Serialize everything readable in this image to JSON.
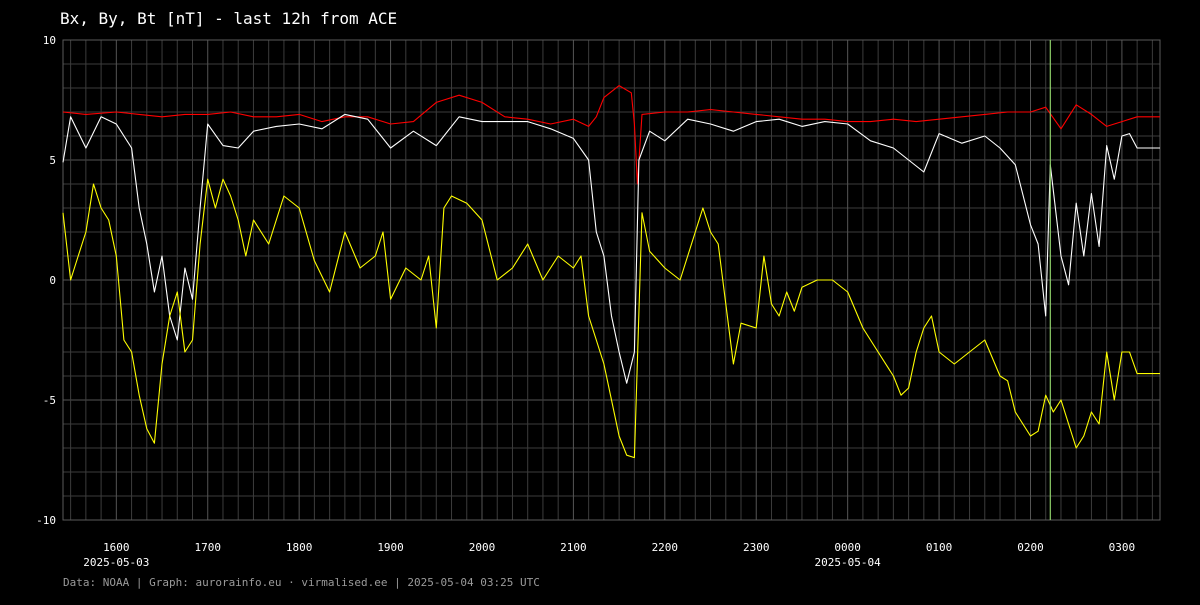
{
  "chart_data": {
    "type": "line",
    "title": "Bx, By, Bt [nT] - last 12h from ACE",
    "xlabel": "",
    "ylabel": "",
    "ylim": [
      -10,
      10
    ],
    "yticks": [
      "10",
      "5",
      "0",
      "-5",
      "-10"
    ],
    "ytick_values": [
      10,
      5,
      0,
      -5,
      -10
    ],
    "xlim": [
      "2025-05-03 15:25",
      "2025-05-04 03:25"
    ],
    "xticks": [
      {
        "t": "2025-05-03 16:00",
        "label": "1600",
        "date": "2025-05-03"
      },
      {
        "t": "2025-05-03 17:00",
        "label": "1700"
      },
      {
        "t": "2025-05-03 18:00",
        "label": "1800"
      },
      {
        "t": "2025-05-03 19:00",
        "label": "1900"
      },
      {
        "t": "2025-05-03 20:00",
        "label": "2000"
      },
      {
        "t": "2025-05-03 21:00",
        "label": "2100"
      },
      {
        "t": "2025-05-03 22:00",
        "label": "2200"
      },
      {
        "t": "2025-05-03 23:00",
        "label": "2300"
      },
      {
        "t": "2025-05-04 00:00",
        "label": "0000",
        "date": "2025-05-04"
      },
      {
        "t": "2025-05-04 01:00",
        "label": "0100"
      },
      {
        "t": "2025-05-04 02:00",
        "label": "0200"
      },
      {
        "t": "2025-05-04 03:00",
        "label": "0300"
      }
    ],
    "grid": true,
    "marker_time": "2025-05-04 02:13",
    "colors": {
      "background": "#000000",
      "grid": "#3c3c3c",
      "text": "#ffffff",
      "marker": "#8fd16a"
    },
    "series": [
      {
        "color": "#ff0000",
        "points": [
          [
            "2025-05-03 15:25",
            7.0
          ],
          [
            "2025-05-03 15:40",
            6.9
          ],
          [
            "2025-05-03 16:00",
            7.0
          ],
          [
            "2025-05-03 16:15",
            6.9
          ],
          [
            "2025-05-03 16:30",
            6.8
          ],
          [
            "2025-05-03 16:45",
            6.9
          ],
          [
            "2025-05-03 17:00",
            6.9
          ],
          [
            "2025-05-03 17:15",
            7.0
          ],
          [
            "2025-05-03 17:30",
            6.8
          ],
          [
            "2025-05-03 17:45",
            6.8
          ],
          [
            "2025-05-03 18:00",
            6.9
          ],
          [
            "2025-05-03 18:15",
            6.6
          ],
          [
            "2025-05-03 18:30",
            6.8
          ],
          [
            "2025-05-03 18:45",
            6.8
          ],
          [
            "2025-05-03 19:00",
            6.5
          ],
          [
            "2025-05-03 19:15",
            6.6
          ],
          [
            "2025-05-03 19:30",
            7.4
          ],
          [
            "2025-05-03 19:45",
            7.7
          ],
          [
            "2025-05-03 20:00",
            7.4
          ],
          [
            "2025-05-03 20:15",
            6.8
          ],
          [
            "2025-05-03 20:30",
            6.7
          ],
          [
            "2025-05-03 20:45",
            6.5
          ],
          [
            "2025-05-03 21:00",
            6.7
          ],
          [
            "2025-05-03 21:10",
            6.4
          ],
          [
            "2025-05-03 21:15",
            6.8
          ],
          [
            "2025-05-03 21:20",
            7.6
          ],
          [
            "2025-05-03 21:30",
            8.1
          ],
          [
            "2025-05-03 21:38",
            7.8
          ],
          [
            "2025-05-03 21:40",
            6.5
          ],
          [
            "2025-05-03 21:42",
            4.0
          ],
          [
            "2025-05-03 21:45",
            6.9
          ],
          [
            "2025-05-03 22:00",
            7.0
          ],
          [
            "2025-05-03 22:15",
            7.0
          ],
          [
            "2025-05-03 22:30",
            7.1
          ],
          [
            "2025-05-03 22:45",
            7.0
          ],
          [
            "2025-05-03 23:00",
            6.9
          ],
          [
            "2025-05-03 23:15",
            6.8
          ],
          [
            "2025-05-03 23:30",
            6.7
          ],
          [
            "2025-05-03 23:45",
            6.7
          ],
          [
            "2025-05-04 00:00",
            6.6
          ],
          [
            "2025-05-04 00:15",
            6.6
          ],
          [
            "2025-05-04 00:30",
            6.7
          ],
          [
            "2025-05-04 00:45",
            6.6
          ],
          [
            "2025-05-04 01:00",
            6.7
          ],
          [
            "2025-05-04 01:15",
            6.8
          ],
          [
            "2025-05-04 01:30",
            6.9
          ],
          [
            "2025-05-04 01:45",
            7.0
          ],
          [
            "2025-05-04 02:00",
            7.0
          ],
          [
            "2025-05-04 02:10",
            7.2
          ],
          [
            "2025-05-04 02:20",
            6.3
          ],
          [
            "2025-05-04 02:30",
            7.3
          ],
          [
            "2025-05-04 02:40",
            6.9
          ],
          [
            "2025-05-04 02:50",
            6.4
          ],
          [
            "2025-05-04 03:00",
            6.6
          ],
          [
            "2025-05-04 03:10",
            6.8
          ],
          [
            "2025-05-04 03:25",
            6.8
          ]
        ]
      },
      {
        "color": "#ffffff",
        "points": [
          [
            "2025-05-03 15:25",
            4.9
          ],
          [
            "2025-05-03 15:30",
            6.8
          ],
          [
            "2025-05-03 15:40",
            5.5
          ],
          [
            "2025-05-03 15:50",
            6.8
          ],
          [
            "2025-05-03 16:00",
            6.5
          ],
          [
            "2025-05-03 16:10",
            5.5
          ],
          [
            "2025-05-03 16:15",
            3.0
          ],
          [
            "2025-05-03 16:20",
            1.5
          ],
          [
            "2025-05-03 16:25",
            -0.5
          ],
          [
            "2025-05-03 16:30",
            1.0
          ],
          [
            "2025-05-03 16:35",
            -1.5
          ],
          [
            "2025-05-03 16:40",
            -2.5
          ],
          [
            "2025-05-03 16:45",
            0.5
          ],
          [
            "2025-05-03 16:50",
            -0.8
          ],
          [
            "2025-05-03 16:55",
            3.0
          ],
          [
            "2025-05-03 17:00",
            6.5
          ],
          [
            "2025-05-03 17:10",
            5.6
          ],
          [
            "2025-05-03 17:20",
            5.5
          ],
          [
            "2025-05-03 17:30",
            6.2
          ],
          [
            "2025-05-03 17:45",
            6.4
          ],
          [
            "2025-05-03 18:00",
            6.5
          ],
          [
            "2025-05-03 18:15",
            6.3
          ],
          [
            "2025-05-03 18:30",
            6.9
          ],
          [
            "2025-05-03 18:45",
            6.7
          ],
          [
            "2025-05-03 19:00",
            5.5
          ],
          [
            "2025-05-03 19:15",
            6.2
          ],
          [
            "2025-05-03 19:30",
            5.6
          ],
          [
            "2025-05-03 19:45",
            6.8
          ],
          [
            "2025-05-03 20:00",
            6.6
          ],
          [
            "2025-05-03 20:15",
            6.6
          ],
          [
            "2025-05-03 20:30",
            6.6
          ],
          [
            "2025-05-03 20:45",
            6.3
          ],
          [
            "2025-05-03 21:00",
            5.9
          ],
          [
            "2025-05-03 21:10",
            5.0
          ],
          [
            "2025-05-03 21:15",
            2.0
          ],
          [
            "2025-05-03 21:20",
            1.0
          ],
          [
            "2025-05-03 21:25",
            -1.5
          ],
          [
            "2025-05-03 21:30",
            -3.0
          ],
          [
            "2025-05-03 21:35",
            -4.3
          ],
          [
            "2025-05-03 21:40",
            -3.0
          ],
          [
            "2025-05-03 21:43",
            5.0
          ],
          [
            "2025-05-03 21:50",
            6.2
          ],
          [
            "2025-05-03 22:00",
            5.8
          ],
          [
            "2025-05-03 22:15",
            6.7
          ],
          [
            "2025-05-03 22:30",
            6.5
          ],
          [
            "2025-05-03 22:45",
            6.2
          ],
          [
            "2025-05-03 23:00",
            6.6
          ],
          [
            "2025-05-03 23:15",
            6.7
          ],
          [
            "2025-05-03 23:30",
            6.4
          ],
          [
            "2025-05-03 23:45",
            6.6
          ],
          [
            "2025-05-04 00:00",
            6.5
          ],
          [
            "2025-05-04 00:15",
            5.8
          ],
          [
            "2025-05-04 00:30",
            5.5
          ],
          [
            "2025-05-04 00:40",
            5.0
          ],
          [
            "2025-05-04 00:50",
            4.5
          ],
          [
            "2025-05-04 01:00",
            6.1
          ],
          [
            "2025-05-04 01:15",
            5.7
          ],
          [
            "2025-05-04 01:30",
            6.0
          ],
          [
            "2025-05-04 01:40",
            5.5
          ],
          [
            "2025-05-04 01:50",
            4.8
          ],
          [
            "2025-05-04 02:00",
            2.3
          ],
          [
            "2025-05-04 02:05",
            1.5
          ],
          [
            "2025-05-04 02:10",
            -1.5
          ],
          [
            "2025-05-04 02:13",
            4.8
          ],
          [
            "2025-05-04 02:20",
            1.0
          ],
          [
            "2025-05-04 02:25",
            -0.2
          ],
          [
            "2025-05-04 02:30",
            3.2
          ],
          [
            "2025-05-04 02:35",
            1.0
          ],
          [
            "2025-05-04 02:40",
            3.6
          ],
          [
            "2025-05-04 02:45",
            1.4
          ],
          [
            "2025-05-04 02:50",
            5.6
          ],
          [
            "2025-05-04 02:55",
            4.2
          ],
          [
            "2025-05-04 03:00",
            6.0
          ],
          [
            "2025-05-04 03:05",
            6.1
          ],
          [
            "2025-05-04 03:10",
            5.5
          ],
          [
            "2025-05-04 03:25",
            5.5
          ]
        ]
      },
      {
        "color": "#ffff00",
        "points": [
          [
            "2025-05-03 15:25",
            2.8
          ],
          [
            "2025-05-03 15:30",
            0.0
          ],
          [
            "2025-05-03 15:35",
            1.0
          ],
          [
            "2025-05-03 15:40",
            2.0
          ],
          [
            "2025-05-03 15:45",
            4.0
          ],
          [
            "2025-05-03 15:50",
            3.0
          ],
          [
            "2025-05-03 15:55",
            2.5
          ],
          [
            "2025-05-03 16:00",
            1.0
          ],
          [
            "2025-05-03 16:05",
            -2.5
          ],
          [
            "2025-05-03 16:10",
            -3.0
          ],
          [
            "2025-05-03 16:15",
            -4.8
          ],
          [
            "2025-05-03 16:20",
            -6.2
          ],
          [
            "2025-05-03 16:25",
            -6.8
          ],
          [
            "2025-05-03 16:30",
            -3.5
          ],
          [
            "2025-05-03 16:35",
            -1.5
          ],
          [
            "2025-05-03 16:40",
            -0.5
          ],
          [
            "2025-05-03 16:45",
            -3.0
          ],
          [
            "2025-05-03 16:50",
            -2.5
          ],
          [
            "2025-05-03 16:55",
            1.5
          ],
          [
            "2025-05-03 17:00",
            4.2
          ],
          [
            "2025-05-03 17:05",
            3.0
          ],
          [
            "2025-05-03 17:10",
            4.2
          ],
          [
            "2025-05-03 17:15",
            3.5
          ],
          [
            "2025-05-03 17:20",
            2.5
          ],
          [
            "2025-05-03 17:25",
            1.0
          ],
          [
            "2025-05-03 17:30",
            2.5
          ],
          [
            "2025-05-03 17:40",
            1.5
          ],
          [
            "2025-05-03 17:50",
            3.5
          ],
          [
            "2025-05-03 18:00",
            3.0
          ],
          [
            "2025-05-03 18:10",
            0.8
          ],
          [
            "2025-05-03 18:20",
            -0.5
          ],
          [
            "2025-05-03 18:30",
            2.0
          ],
          [
            "2025-05-03 18:40",
            0.5
          ],
          [
            "2025-05-03 18:50",
            1.0
          ],
          [
            "2025-05-03 18:55",
            2.0
          ],
          [
            "2025-05-03 19:00",
            -0.8
          ],
          [
            "2025-05-03 19:10",
            0.5
          ],
          [
            "2025-05-03 19:20",
            0.0
          ],
          [
            "2025-05-03 19:25",
            1.0
          ],
          [
            "2025-05-03 19:30",
            -2.0
          ],
          [
            "2025-05-03 19:35",
            3.0
          ],
          [
            "2025-05-03 19:40",
            3.5
          ],
          [
            "2025-05-03 19:50",
            3.2
          ],
          [
            "2025-05-03 20:00",
            2.5
          ],
          [
            "2025-05-03 20:10",
            0.0
          ],
          [
            "2025-05-03 20:20",
            0.5
          ],
          [
            "2025-05-03 20:30",
            1.5
          ],
          [
            "2025-05-03 20:40",
            0.0
          ],
          [
            "2025-05-03 20:50",
            1.0
          ],
          [
            "2025-05-03 21:00",
            0.5
          ],
          [
            "2025-05-03 21:05",
            1.0
          ],
          [
            "2025-05-03 21:10",
            -1.5
          ],
          [
            "2025-05-03 21:15",
            -2.5
          ],
          [
            "2025-05-03 21:20",
            -3.5
          ],
          [
            "2025-05-03 21:25",
            -5.0
          ],
          [
            "2025-05-03 21:30",
            -6.5
          ],
          [
            "2025-05-03 21:35",
            -7.3
          ],
          [
            "2025-05-03 21:40",
            -7.4
          ],
          [
            "2025-05-03 21:45",
            2.8
          ],
          [
            "2025-05-03 21:50",
            1.2
          ],
          [
            "2025-05-03 22:00",
            0.5
          ],
          [
            "2025-05-03 22:10",
            0.0
          ],
          [
            "2025-05-03 22:15",
            1.0
          ],
          [
            "2025-05-03 22:20",
            2.0
          ],
          [
            "2025-05-03 22:25",
            3.0
          ],
          [
            "2025-05-03 22:30",
            2.0
          ],
          [
            "2025-05-03 22:35",
            1.5
          ],
          [
            "2025-05-03 22:40",
            -1.0
          ],
          [
            "2025-05-03 22:45",
            -3.5
          ],
          [
            "2025-05-03 22:50",
            -1.8
          ],
          [
            "2025-05-03 23:00",
            -2.0
          ],
          [
            "2025-05-03 23:05",
            1.0
          ],
          [
            "2025-05-03 23:10",
            -1.0
          ],
          [
            "2025-05-03 23:15",
            -1.5
          ],
          [
            "2025-05-03 23:20",
            -0.5
          ],
          [
            "2025-05-03 23:25",
            -1.3
          ],
          [
            "2025-05-03 23:30",
            -0.3
          ],
          [
            "2025-05-03 23:40",
            0.0
          ],
          [
            "2025-05-03 23:50",
            0.0
          ],
          [
            "2025-05-04 00:00",
            -0.5
          ],
          [
            "2025-05-04 00:10",
            -2.0
          ],
          [
            "2025-05-04 00:20",
            -3.0
          ],
          [
            "2025-05-04 00:30",
            -4.0
          ],
          [
            "2025-05-04 00:35",
            -4.8
          ],
          [
            "2025-05-04 00:40",
            -4.5
          ],
          [
            "2025-05-04 00:45",
            -3.0
          ],
          [
            "2025-05-04 00:50",
            -2.0
          ],
          [
            "2025-05-04 00:55",
            -1.5
          ],
          [
            "2025-05-04 01:00",
            -3.0
          ],
          [
            "2025-05-04 01:10",
            -3.5
          ],
          [
            "2025-05-04 01:20",
            -3.0
          ],
          [
            "2025-05-04 01:30",
            -2.5
          ],
          [
            "2025-05-04 01:40",
            -4.0
          ],
          [
            "2025-05-04 01:45",
            -4.2
          ],
          [
            "2025-05-04 01:50",
            -5.5
          ],
          [
            "2025-05-04 02:00",
            -6.5
          ],
          [
            "2025-05-04 02:05",
            -6.3
          ],
          [
            "2025-05-04 02:10",
            -4.8
          ],
          [
            "2025-05-04 02:15",
            -5.5
          ],
          [
            "2025-05-04 02:20",
            -5.0
          ],
          [
            "2025-05-04 02:25",
            -6.0
          ],
          [
            "2025-05-04 02:30",
            -7.0
          ],
          [
            "2025-05-04 02:35",
            -6.5
          ],
          [
            "2025-05-04 02:40",
            -5.5
          ],
          [
            "2025-05-04 02:45",
            -6.0
          ],
          [
            "2025-05-04 02:50",
            -3.0
          ],
          [
            "2025-05-04 02:55",
            -5.0
          ],
          [
            "2025-05-04 03:00",
            -3.0
          ],
          [
            "2025-05-04 03:05",
            -3.0
          ],
          [
            "2025-05-04 03:10",
            -3.9
          ],
          [
            "2025-05-04 03:25",
            -3.9
          ]
        ]
      }
    ]
  },
  "footer": "Data: NOAA | Graph: aurorainfo.eu · virmalised.ee | 2025-05-04 03:25 UTC"
}
